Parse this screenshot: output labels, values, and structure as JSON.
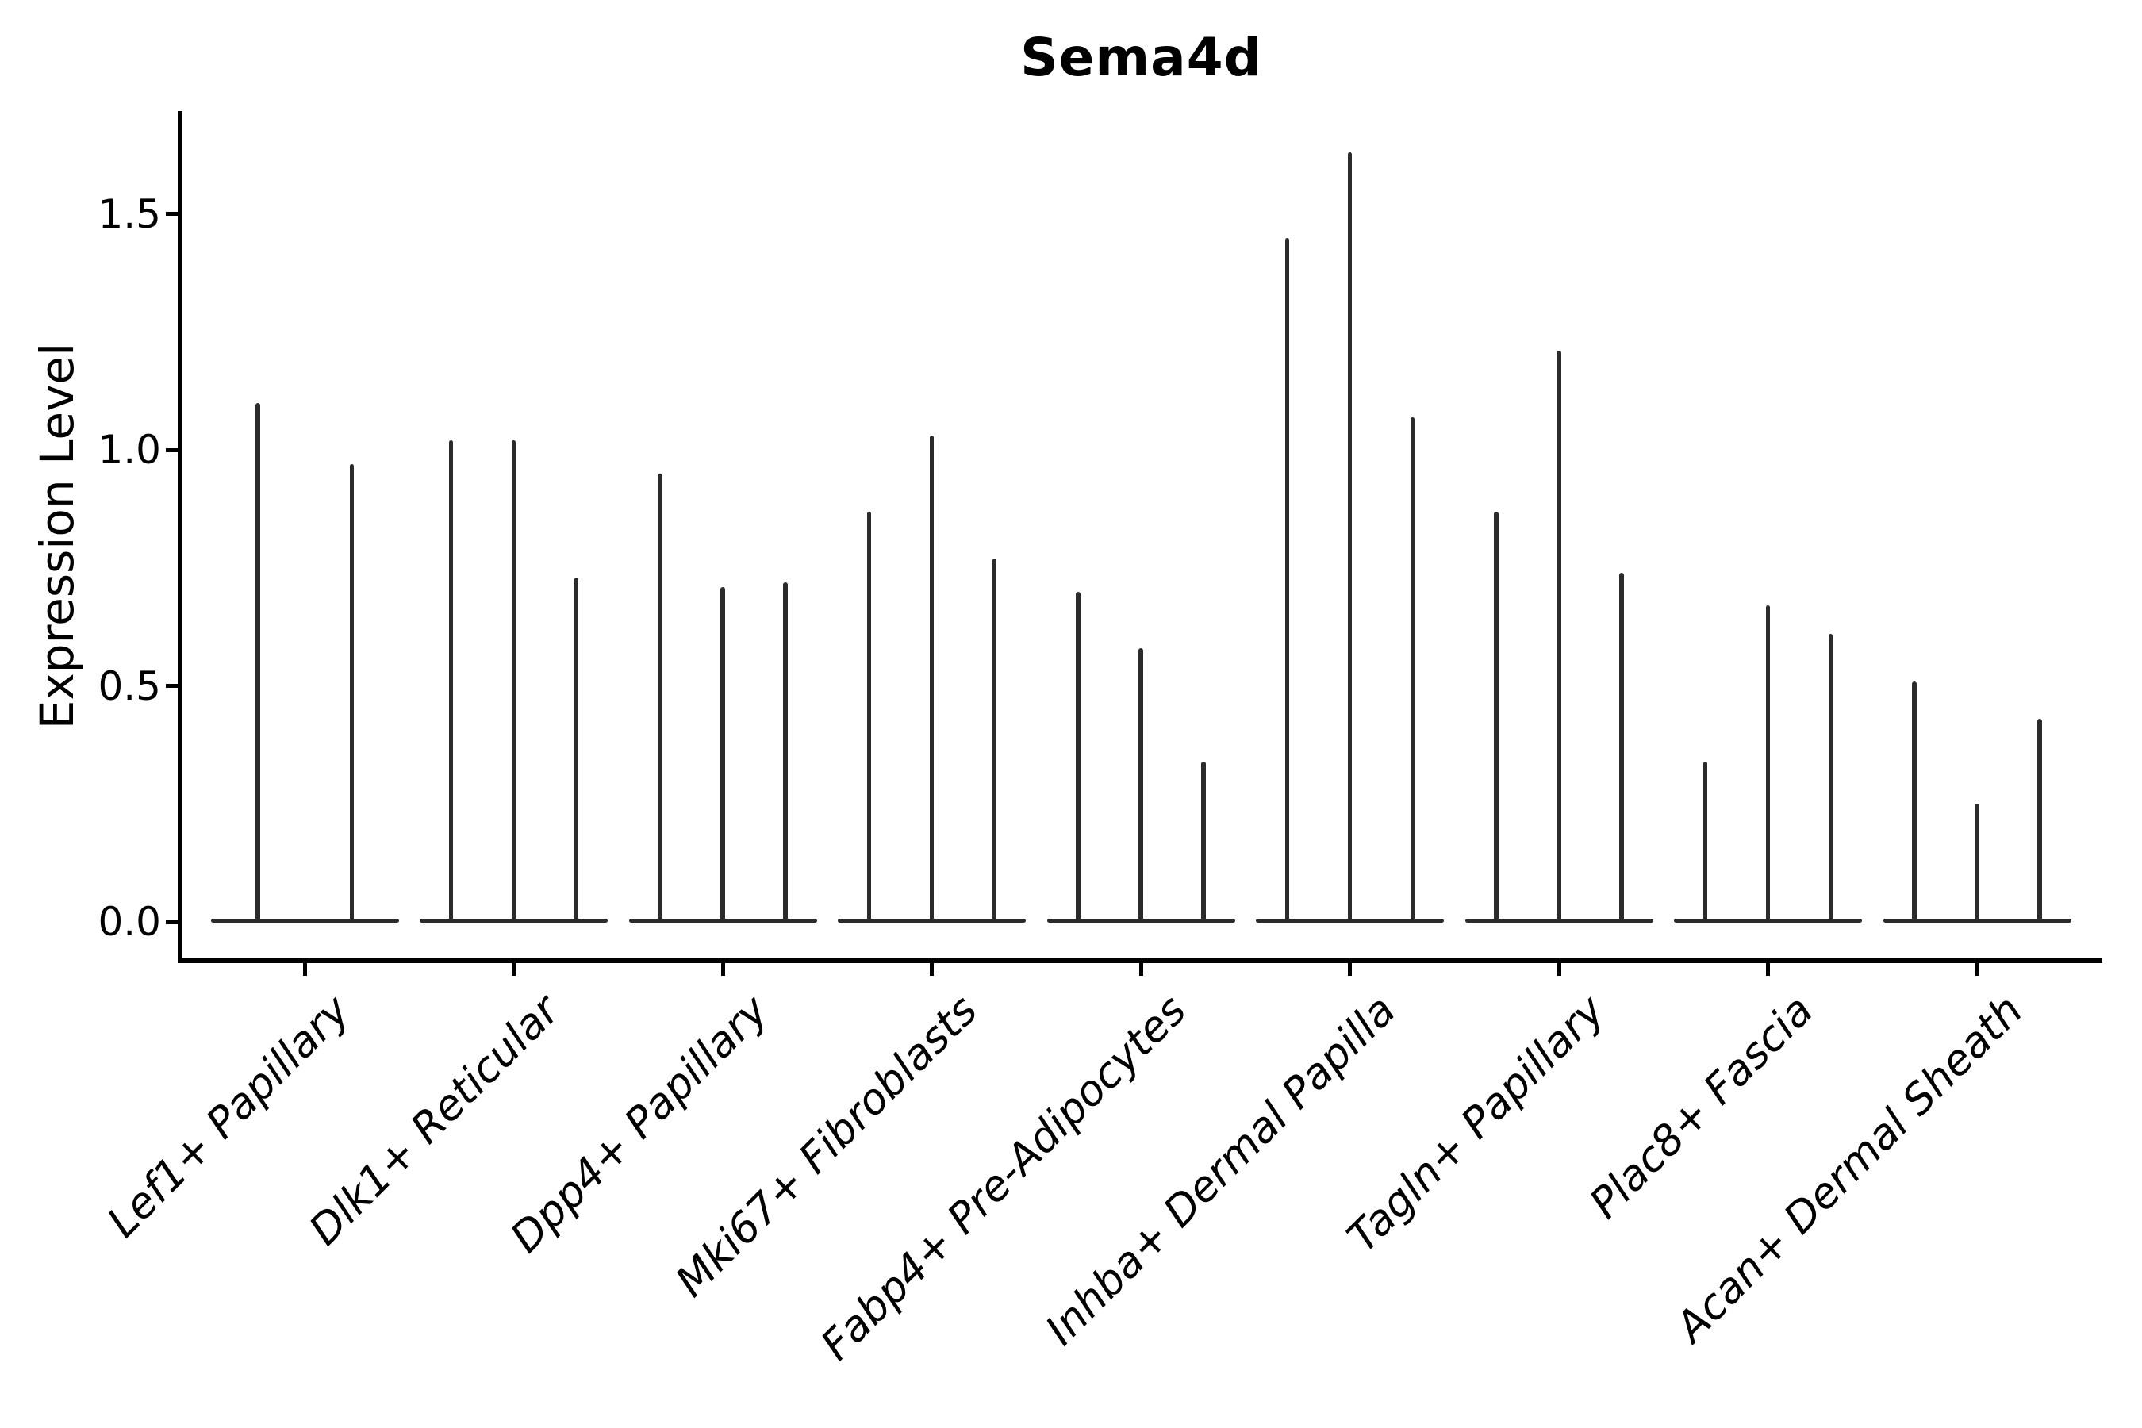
{
  "title": "Sema4d",
  "axes": {
    "ylabel": "Expression Level",
    "ytick_labels": [
      "0.0",
      "0.5",
      "1.0",
      "1.5"
    ]
  },
  "chart_data": {
    "type": "violin",
    "title": "Sema4d",
    "subtitle": "",
    "xlabel": "",
    "ylabel": "Expression Level",
    "ylim": [
      0,
      1.72
    ],
    "yticks": [
      0.0,
      0.5,
      1.0,
      1.5
    ],
    "grid": false,
    "legend": "none",
    "orientation": "vertical",
    "description": "Grouped violin plot of Sema4d expression; violins are near-zero-width spikes (sparse expression), one spike per split group within each cell-type category. Values are the maximum expression (spike top) per violin.",
    "categories": [
      "Lef1+ Papillary",
      "Dlk1+ Reticular",
      "Dpp4+ Papillary",
      "Mki67+ Fibroblasts",
      "Fabp4+ Pre-Adipocytes",
      "Inhba+ Dermal Papilla",
      "Tagln+ Papillary",
      "Plac8+ Fascia",
      "Acan+ Dermal Sheath"
    ],
    "series": [
      {
        "category": "Lef1+ Papillary",
        "violin_max_values": [
          1.1,
          0.97
        ]
      },
      {
        "category": "Dlk1+ Reticular",
        "violin_max_values": [
          1.02,
          1.02,
          0.73
        ]
      },
      {
        "category": "Dpp4+ Papillary",
        "violin_max_values": [
          0.95,
          0.71,
          0.72
        ]
      },
      {
        "category": "Mki67+ Fibroblasts",
        "violin_max_values": [
          0.87,
          1.03,
          0.77
        ]
      },
      {
        "category": "Fabp4+ Pre-Adipocytes",
        "violin_max_values": [
          0.7,
          0.58,
          0.34
        ]
      },
      {
        "category": "Inhba+ Dermal Papilla",
        "violin_max_values": [
          1.45,
          1.63,
          1.07
        ]
      },
      {
        "category": "Tagln+ Papillary",
        "violin_max_values": [
          0.87,
          1.21,
          0.74
        ]
      },
      {
        "category": "Plac8+ Fascia",
        "violin_max_values": [
          0.34,
          0.67,
          0.61
        ]
      },
      {
        "category": "Acan+ Dermal Sheath",
        "violin_max_values": [
          0.51,
          0.25,
          0.43
        ]
      }
    ],
    "style": {
      "violin_color": "#2b2b2b",
      "axis_color": "#000000",
      "text_color": "#000000",
      "background_color": "#ffffff"
    }
  }
}
